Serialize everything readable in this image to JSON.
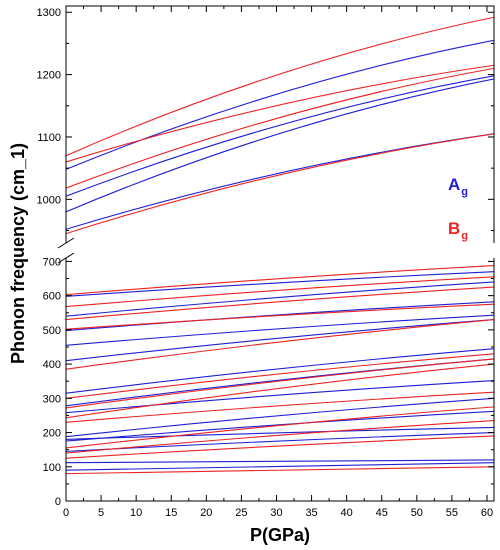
{
  "chart_data": {
    "type": "line",
    "xlabel": "P(GPa)",
    "ylabel": "Phonon frequency (cm_1)",
    "xlim": [
      0,
      61
    ],
    "x_ticks": [
      0,
      5,
      10,
      15,
      20,
      25,
      30,
      35,
      40,
      45,
      50,
      55,
      60
    ],
    "broken_y_axis": true,
    "upper_panel": {
      "ylim": [
        930,
        1310
      ],
      "ticks": [
        1000,
        1100,
        1200,
        1300
      ]
    },
    "lower_panel": {
      "ylim": [
        0,
        710
      ],
      "ticks": [
        0,
        100,
        200,
        300,
        400,
        500,
        600,
        700
      ]
    },
    "legend": {
      "placement": "right",
      "items": [
        {
          "symbol": "A",
          "sub": "g",
          "color": "#1f1fd6"
        },
        {
          "symbol": "B",
          "sub": "g",
          "color": "#ee2222"
        }
      ]
    },
    "series": [
      {
        "symmetry": "Ag",
        "color": "#1f1fd6",
        "x": [
          0,
          61
        ],
        "y": [
          1048,
          1255
        ]
      },
      {
        "symmetry": "Ag",
        "color": "#1f1fd6",
        "x": [
          0,
          61
        ],
        "y": [
          1005,
          1198
        ]
      },
      {
        "symmetry": "Ag",
        "color": "#1f1fd6",
        "x": [
          0,
          61
        ],
        "y": [
          980,
          1193
        ]
      },
      {
        "symmetry": "Ag",
        "color": "#1f1fd6",
        "x": [
          0,
          61
        ],
        "y": [
          952,
          1105
        ]
      },
      {
        "symmetry": "Bg",
        "color": "#ee2222",
        "x": [
          0,
          61
        ],
        "y": [
          1070,
          1292
        ]
      },
      {
        "symmetry": "Bg",
        "color": "#ee2222",
        "x": [
          0,
          61
        ],
        "y": [
          1060,
          1215
        ]
      },
      {
        "symmetry": "Bg",
        "color": "#ee2222",
        "x": [
          0,
          61
        ],
        "y": [
          1018,
          1210
        ]
      },
      {
        "symmetry": "Bg",
        "color": "#ee2222",
        "x": [
          0,
          61
        ],
        "y": [
          945,
          1105
        ]
      },
      {
        "symmetry": "Ag",
        "color": "#1f1fd6",
        "x": [
          0,
          61
        ],
        "y": [
          598,
          670
        ]
      },
      {
        "symmetry": "Ag",
        "color": "#1f1fd6",
        "x": [
          0,
          61
        ],
        "y": [
          540,
          640
        ]
      },
      {
        "symmetry": "Ag",
        "color": "#1f1fd6",
        "x": [
          0,
          61
        ],
        "y": [
          498,
          582
        ]
      },
      {
        "symmetry": "Ag",
        "color": "#1f1fd6",
        "x": [
          0,
          61
        ],
        "y": [
          455,
          543
        ]
      },
      {
        "symmetry": "Ag",
        "color": "#1f1fd6",
        "x": [
          0,
          61
        ],
        "y": [
          410,
          530
        ]
      },
      {
        "symmetry": "Ag",
        "color": "#1f1fd6",
        "x": [
          0,
          61
        ],
        "y": [
          315,
          445
        ]
      },
      {
        "symmetry": "Ag",
        "color": "#1f1fd6",
        "x": [
          0,
          61
        ],
        "y": [
          278,
          415
        ]
      },
      {
        "symmetry": "Ag",
        "color": "#1f1fd6",
        "x": [
          0,
          61
        ],
        "y": [
          258,
          352
        ]
      },
      {
        "symmetry": "Ag",
        "color": "#1f1fd6",
        "x": [
          0,
          61
        ],
        "y": [
          188,
          300
        ]
      },
      {
        "symmetry": "Ag",
        "color": "#1f1fd6",
        "x": [
          0,
          61
        ],
        "y": [
          175,
          262
        ]
      },
      {
        "symmetry": "Ag",
        "color": "#1f1fd6",
        "x": [
          0,
          61
        ],
        "y": [
          180,
          215
        ]
      },
      {
        "symmetry": "Ag",
        "color": "#1f1fd6",
        "x": [
          0,
          61
        ],
        "y": [
          145,
          200
        ]
      },
      {
        "symmetry": "Ag",
        "color": "#1f1fd6",
        "x": [
          0,
          61
        ],
        "y": [
          112,
          120
        ]
      },
      {
        "symmetry": "Ag",
        "color": "#1f1fd6",
        "x": [
          0,
          61
        ],
        "y": [
          90,
          112
        ]
      },
      {
        "symmetry": "Bg",
        "color": "#ee2222",
        "x": [
          0,
          61
        ],
        "y": [
          603,
          688
        ]
      },
      {
        "symmetry": "Bg",
        "color": "#ee2222",
        "x": [
          0,
          61
        ],
        "y": [
          568,
          655
        ]
      },
      {
        "symmetry": "Bg",
        "color": "#ee2222",
        "x": [
          0,
          61
        ],
        "y": [
          530,
          625
        ]
      },
      {
        "symmetry": "Bg",
        "color": "#ee2222",
        "x": [
          0,
          61
        ],
        "y": [
          502,
          575
        ]
      },
      {
        "symmetry": "Bg",
        "color": "#ee2222",
        "x": [
          0,
          61
        ],
        "y": [
          385,
          530
        ]
      },
      {
        "symmetry": "Bg",
        "color": "#ee2222",
        "x": [
          0,
          61
        ],
        "y": [
          300,
          430
        ]
      },
      {
        "symmetry": "Bg",
        "color": "#ee2222",
        "x": [
          0,
          61
        ],
        "y": [
          272,
          415
        ]
      },
      {
        "symmetry": "Bg",
        "color": "#ee2222",
        "x": [
          0,
          61
        ],
        "y": [
          243,
          400
        ]
      },
      {
        "symmetry": "Bg",
        "color": "#ee2222",
        "x": [
          0,
          61
        ],
        "y": [
          230,
          318
        ]
      },
      {
        "symmetry": "Bg",
        "color": "#ee2222",
        "x": [
          0,
          61
        ],
        "y": [
          155,
          275
        ]
      },
      {
        "symmetry": "Bg",
        "color": "#ee2222",
        "x": [
          0,
          61
        ],
        "y": [
          140,
          235
        ]
      },
      {
        "symmetry": "Bg",
        "color": "#ee2222",
        "x": [
          0,
          61
        ],
        "y": [
          125,
          190
        ]
      },
      {
        "symmetry": "Bg",
        "color": "#ee2222",
        "x": [
          0,
          61
        ],
        "y": [
          80,
          100
        ]
      }
    ]
  }
}
